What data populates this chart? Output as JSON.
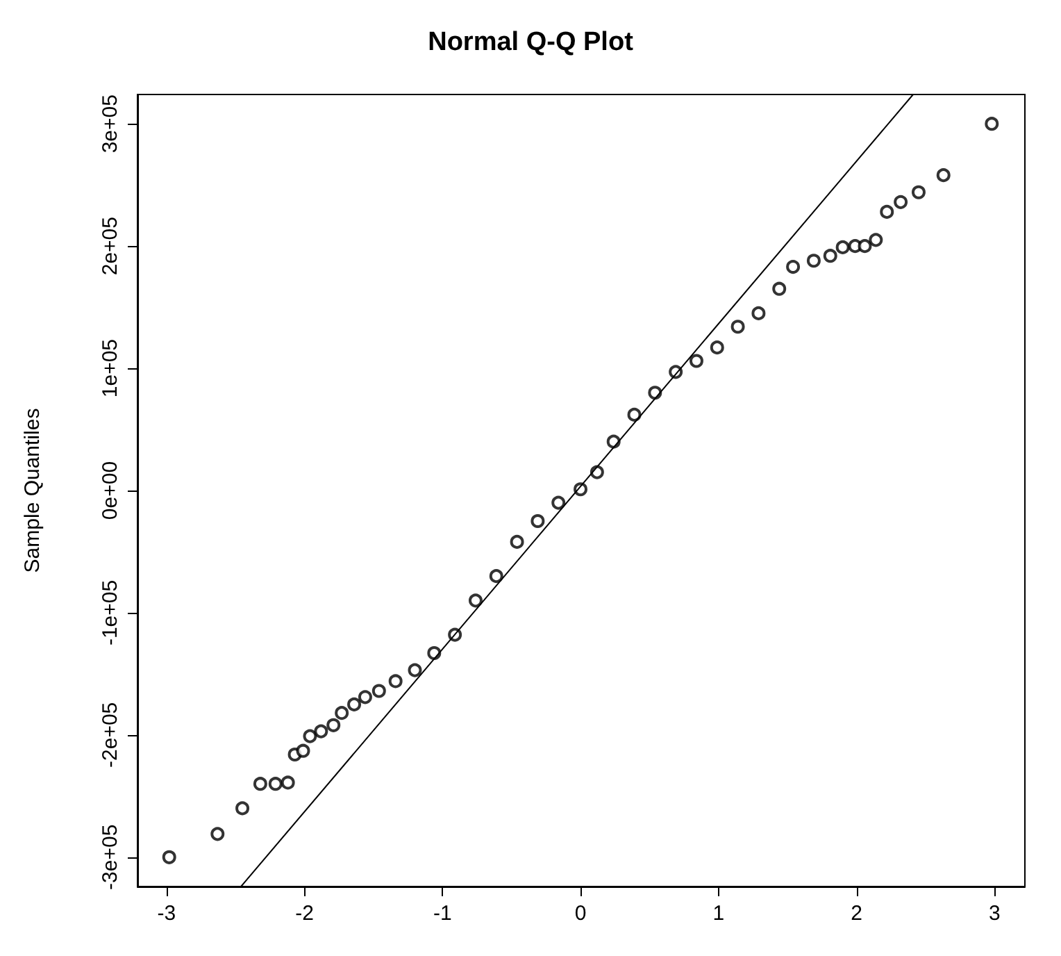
{
  "chart_data": {
    "type": "scatter",
    "title": "Normal Q-Q Plot",
    "ylabel": "Sample Quantiles",
    "xlim": [
      -3.21,
      3.22
    ],
    "ylim": [
      -324000,
      324000
    ],
    "xticks": [
      -3,
      -2,
      -1,
      0,
      1,
      2,
      3
    ],
    "yticks": [
      {
        "value": -300000,
        "label": "-3e+05"
      },
      {
        "value": -200000,
        "label": "-2e+05"
      },
      {
        "value": -100000,
        "label": "-1e+05"
      },
      {
        "value": 0,
        "label": "0e+00"
      },
      {
        "value": 100000,
        "label": "1e+05"
      },
      {
        "value": 200000,
        "label": "2e+05"
      },
      {
        "value": 300000,
        "label": "3e+05"
      }
    ],
    "grid": false,
    "marker": "circle",
    "series": [
      {
        "color": "#000000",
        "x": [
          -2.98,
          -2.63,
          -2.45,
          -2.32,
          -2.21,
          -2.12,
          -2.07,
          -2.01,
          -1.96,
          -1.88,
          -1.79,
          -1.73,
          -1.64,
          -1.56,
          -1.46,
          -1.34,
          -1.2,
          -1.06,
          -0.91,
          -0.76,
          -0.61,
          -0.46,
          -0.31,
          -0.16,
          0,
          0.12,
          0.24,
          0.39,
          0.54,
          0.69,
          0.84,
          0.99,
          1.14,
          1.29,
          1.44,
          1.54,
          1.69,
          1.81,
          1.9,
          1.99,
          2.06,
          2.14,
          2.22,
          2.32,
          2.45,
          2.63,
          2.98
        ],
        "values": [
          -300000,
          -281000,
          -260000,
          -240000,
          -240000,
          -239000,
          -216000,
          -213000,
          -201000,
          -197000,
          -192000,
          -182000,
          -175000,
          -169000,
          -164000,
          -156000,
          -147000,
          -133000,
          -118000,
          -90000,
          -70000,
          -42000,
          -25000,
          -10000,
          1000,
          15000,
          40000,
          62000,
          80000,
          97000,
          106000,
          117000,
          134000,
          145000,
          165000,
          183000,
          188000,
          192000,
          199000,
          200000,
          200000,
          205000,
          228000,
          236000,
          244000,
          258000,
          300000
        ]
      },
      {
        "type": "line",
        "color": "#000000",
        "line_style": "solid",
        "marker": "none",
        "x": [
          -2.46,
          2.41
        ],
        "values": [
          -324000,
          324000
        ]
      }
    ]
  }
}
